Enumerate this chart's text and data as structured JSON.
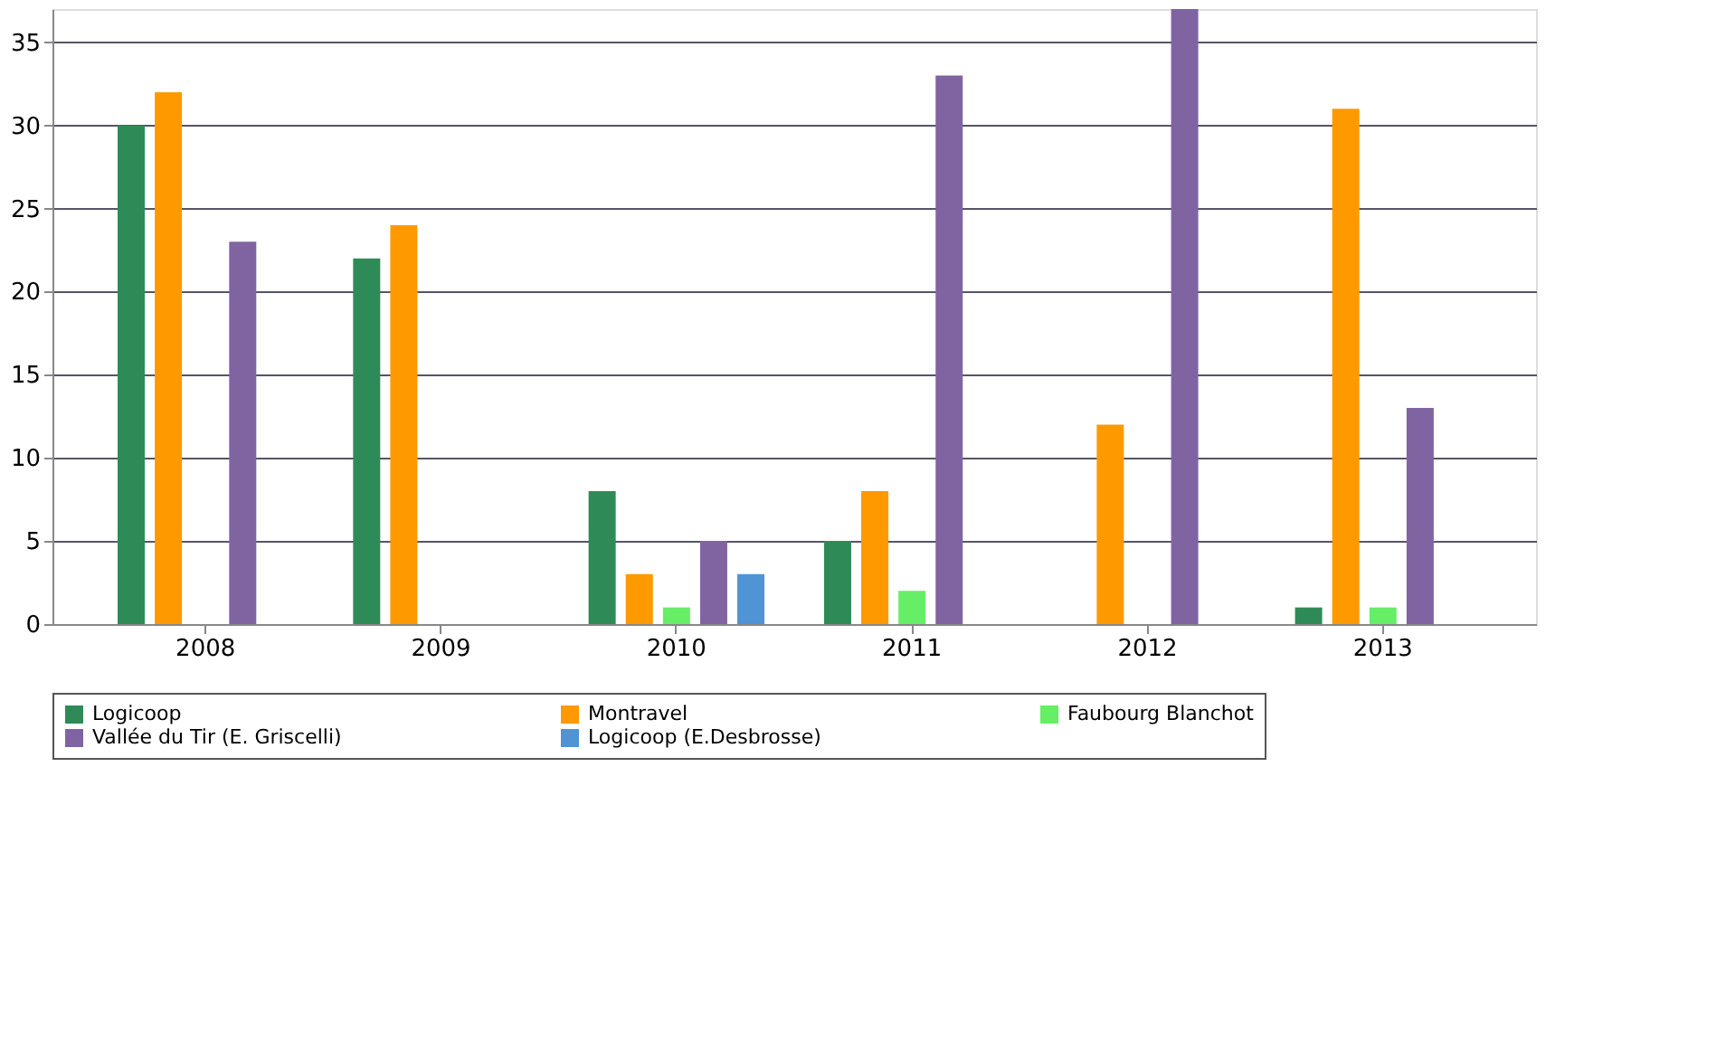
{
  "chart_data": {
    "type": "bar",
    "categories": [
      "2008",
      "2009",
      "2010",
      "2011",
      "2012",
      "2013"
    ],
    "series": [
      {
        "name": "Logicoop",
        "color": "#2e8b57",
        "values": [
          30,
          22,
          8,
          5,
          null,
          1
        ]
      },
      {
        "name": "Montravel",
        "color": "#ff9900",
        "values": [
          32,
          24,
          3,
          8,
          12,
          31
        ]
      },
      {
        "name": "Faubourg Blanchot",
        "color": "#66ee66",
        "values": [
          null,
          null,
          1,
          2,
          null,
          1
        ]
      },
      {
        "name": "Vallée du Tir (E. Griscelli)",
        "color": "#8064a2",
        "values": [
          23,
          null,
          5,
          33,
          37,
          13
        ]
      },
      {
        "name": "Logicoop (E.Desbrosse)",
        "color": "#4f94d4",
        "values": [
          null,
          null,
          3,
          null,
          null,
          null
        ]
      }
    ],
    "ylim": [
      0,
      37
    ],
    "yticks": [
      0,
      5,
      10,
      15,
      20,
      25,
      30,
      35
    ],
    "grid": "y",
    "legend": "bottom"
  }
}
